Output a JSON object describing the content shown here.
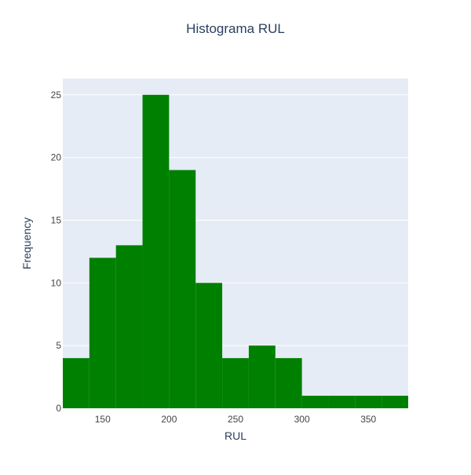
{
  "chart_data": {
    "type": "bar",
    "title": "Histograma RUL",
    "xlabel": "RUL",
    "ylabel": "Frequency",
    "bin_edges": [
      120,
      140,
      160,
      180,
      200,
      220,
      240,
      260,
      280,
      300,
      320,
      340,
      360,
      380
    ],
    "values": [
      4,
      12,
      13,
      25,
      19,
      10,
      4,
      5,
      4,
      1,
      1,
      1,
      1
    ],
    "xlim": [
      120,
      380
    ],
    "ylim": [
      0,
      26.3
    ],
    "xticks": [
      150,
      200,
      250,
      300,
      350
    ],
    "yticks": [
      0,
      5,
      10,
      15,
      20,
      25
    ],
    "grid": true,
    "legend": "none",
    "colors": {
      "bar": "#008000",
      "plot_bg": "#e5ecf6",
      "grid": "#ffffff",
      "text": "#2a3f5f",
      "tick_text": "#444444"
    }
  }
}
